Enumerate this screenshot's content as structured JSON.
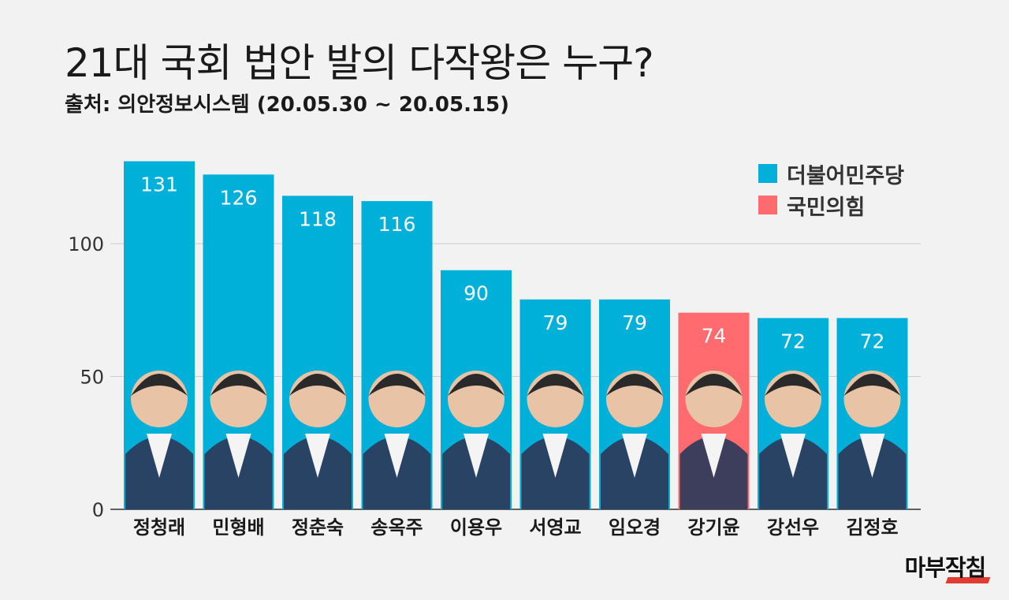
{
  "title": "21대 국회 법안 발의 다작왕은 누구?",
  "subtitle": "출처: 의안정보시스템 (20.05.30 ~ 20.05.15)",
  "logo": "마부작침",
  "colors": {
    "minjoo": "#00b0d8",
    "ppp": "#ff6b6e",
    "grid": "#cfcfcf"
  },
  "legend": [
    {
      "label": "더불어민주당",
      "color": "#00b0d8"
    },
    {
      "label": "국민의힘",
      "color": "#ff6b6e"
    }
  ],
  "chart_data": {
    "type": "bar",
    "categories": [
      "정청래",
      "민형배",
      "정춘숙",
      "송옥주",
      "이용우",
      "서영교",
      "임오경",
      "강기윤",
      "강선우",
      "김정호"
    ],
    "values": [
      131,
      126,
      118,
      116,
      90,
      79,
      79,
      74,
      72,
      72
    ],
    "party": [
      "더불어민주당",
      "더불어민주당",
      "더불어민주당",
      "더불어민주당",
      "더불어민주당",
      "더불어민주당",
      "더불어민주당",
      "국민의힘",
      "더불어민주당",
      "더불어민주당"
    ],
    "yticks": [
      0,
      50,
      100
    ],
    "ylim": [
      0,
      131
    ],
    "grid": true,
    "legend_position": "top-right"
  }
}
